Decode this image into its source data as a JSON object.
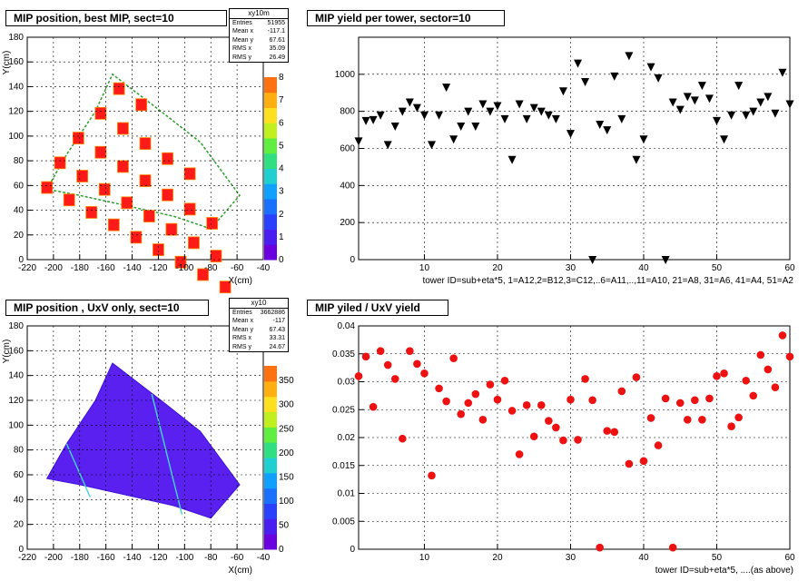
{
  "chart_data": [
    {
      "type": "heatmap",
      "title": "MIP position, best MIP, sect=10",
      "xlabel": "X(cm)",
      "ylabel": "Y(cm)",
      "xlim": [
        -220,
        -40
      ],
      "ylim": [
        0,
        180
      ],
      "x_ticks": [
        "-220",
        "-200",
        "-180",
        "-160",
        "-140",
        "-120",
        "-100",
        "-80",
        "-60",
        "-40"
      ],
      "y_ticks": [
        "0",
        "20",
        "40",
        "60",
        "80",
        "100",
        "120",
        "140",
        "160",
        "180"
      ],
      "colorbar_ticks": [
        "0",
        "1",
        "2",
        "3",
        "4",
        "5",
        "6",
        "7",
        "8"
      ],
      "grid": true,
      "stats": {
        "name": "xy10m",
        "rows": [
          [
            "Entries",
            "51955"
          ],
          [
            "Mean x",
            "-117.1"
          ],
          [
            "Mean y",
            "67.61"
          ],
          [
            "RMS x",
            "35.09"
          ],
          [
            "RMS y",
            "26.49"
          ]
        ]
      }
    },
    {
      "type": "scatter",
      "title": "MIP  yield per tower, sector=10",
      "xlabel": "tower ID=sub+eta*5,  1=A12,2=B12,3=C12,..6=A11,..,11=A10, 21=A8, 31=A6, 41=A4, 51=A2",
      "xlim": [
        1,
        60
      ],
      "ylim": [
        0,
        1200
      ],
      "x_ticks": [
        "10",
        "20",
        "30",
        "40",
        "50",
        "60"
      ],
      "y_ticks": [
        "0",
        "200",
        "400",
        "600",
        "800",
        "1000"
      ],
      "grid": true,
      "marker": "triangle-down",
      "x": [
        1,
        2,
        3,
        4,
        5,
        6,
        7,
        8,
        9,
        10,
        11,
        12,
        13,
        14,
        15,
        16,
        17,
        18,
        19,
        20,
        21,
        22,
        23,
        24,
        25,
        26,
        27,
        28,
        29,
        30,
        31,
        32,
        33,
        34,
        35,
        36,
        37,
        38,
        39,
        40,
        41,
        42,
        43,
        44,
        45,
        46,
        47,
        48,
        49,
        50,
        51,
        52,
        53,
        54,
        55,
        56,
        57,
        58,
        59,
        60
      ],
      "y": [
        640,
        750,
        755,
        780,
        620,
        720,
        800,
        850,
        820,
        780,
        620,
        780,
        930,
        650,
        720,
        800,
        720,
        840,
        800,
        830,
        760,
        540,
        840,
        760,
        820,
        800,
        780,
        760,
        910,
        680,
        1060,
        960,
        0,
        730,
        700,
        990,
        760,
        1100,
        540,
        650,
        1040,
        980,
        0,
        850,
        810,
        880,
        860,
        940,
        870,
        750,
        650,
        780,
        940,
        780,
        800,
        850,
        880,
        790,
        1010,
        840
      ]
    },
    {
      "type": "heatmap",
      "title": "MIP position , UxV only, sect=10",
      "xlabel": "X(cm)",
      "ylabel": "Y(cm)",
      "xlim": [
        -220,
        -40
      ],
      "ylim": [
        0,
        180
      ],
      "x_ticks": [
        "-220",
        "-200",
        "-180",
        "-160",
        "-140",
        "-120",
        "-100",
        "-80",
        "-60",
        "-40"
      ],
      "y_ticks": [
        "0",
        "20",
        "40",
        "60",
        "80",
        "100",
        "120",
        "140",
        "160",
        "180"
      ],
      "colorbar_ticks": [
        "0",
        "50",
        "100",
        "150",
        "200",
        "250",
        "300",
        "350"
      ],
      "grid": true,
      "stats": {
        "name": "xy10",
        "rows": [
          [
            "Entries",
            "3662886"
          ],
          [
            "Mean x",
            "-117"
          ],
          [
            "Mean y",
            "67.43"
          ],
          [
            "RMS x",
            "33.31"
          ],
          [
            "RMS y",
            "24.67"
          ]
        ]
      }
    },
    {
      "type": "scatter",
      "title": "MIP yiled / UxV  yield",
      "xlabel": "tower ID=sub+eta*5, ....(as above)",
      "xlim": [
        1,
        60
      ],
      "ylim": [
        0,
        0.04
      ],
      "x_ticks": [
        "10",
        "20",
        "30",
        "40",
        "50",
        "60"
      ],
      "y_ticks": [
        "0",
        "0.005",
        "0.01",
        "0.015",
        "0.02",
        "0.025",
        "0.03",
        "0.035",
        "0.04"
      ],
      "grid": true,
      "marker": "circle",
      "color": "#ee1111",
      "x": [
        1,
        2,
        3,
        4,
        5,
        6,
        7,
        8,
        9,
        10,
        11,
        12,
        13,
        14,
        15,
        16,
        17,
        18,
        19,
        20,
        21,
        22,
        23,
        24,
        25,
        26,
        27,
        28,
        29,
        30,
        31,
        32,
        33,
        34,
        35,
        36,
        37,
        38,
        39,
        40,
        41,
        42,
        43,
        44,
        45,
        46,
        47,
        48,
        49,
        50,
        51,
        52,
        53,
        54,
        55,
        56,
        57,
        58,
        59,
        60
      ],
      "y": [
        0.031,
        0.0345,
        0.0255,
        0.0355,
        0.033,
        0.0305,
        0.0198,
        0.0355,
        0.0332,
        0.0315,
        0.0132,
        0.0288,
        0.0265,
        0.0342,
        0.0242,
        0.0262,
        0.0278,
        0.0232,
        0.0295,
        0.0268,
        0.0302,
        0.0248,
        0.017,
        0.0258,
        0.0202,
        0.0258,
        0.023,
        0.0218,
        0.0195,
        0.0268,
        0.0196,
        0.0305,
        0.0267,
        0.0003,
        0.0212,
        0.021,
        0.0283,
        0.0153,
        0.0308,
        0.0158,
        0.0235,
        0.0186,
        0.027,
        0.0003,
        0.0262,
        0.0232,
        0.0267,
        0.0232,
        0.027,
        0.031,
        0.0315,
        0.022,
        0.0236,
        0.0302,
        0.0275,
        0.0348,
        0.0322,
        0.029,
        0.0383,
        0.0345
      ]
    }
  ]
}
